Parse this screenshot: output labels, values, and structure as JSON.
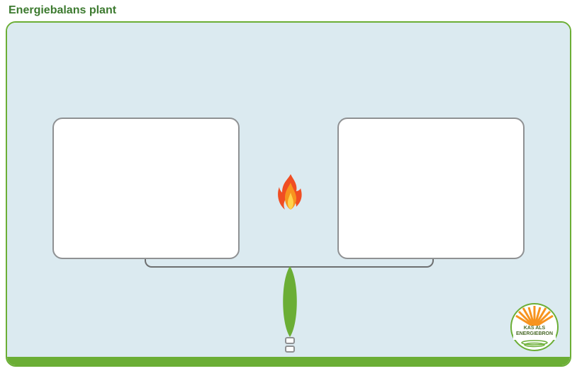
{
  "title": {
    "text": "Energiebalans plant",
    "color": "#3c7a2f",
    "fontsize": 16
  },
  "frame": {
    "border_color": "#6bae35",
    "radius": 14,
    "sky_color": "#dbeaf0",
    "ground_color": "#6bae35",
    "ground_height": 12
  },
  "panels": {
    "left": {
      "bg": "#ffffff",
      "border": "#8f9193",
      "radius": 14
    },
    "right": {
      "bg": "#ffffff",
      "border": "#8f9193",
      "radius": 14
    }
  },
  "balance": {
    "beam_border": "#6d6f70",
    "leaf_fill": "#6bae35",
    "stem_border": "#8f9193"
  },
  "flame": {
    "outer": "#f04e23",
    "mid": "#f7931e",
    "inner": "#ffd24a"
  },
  "logo": {
    "ray_color": "#f7931e",
    "ring_color": "#6bae35",
    "text_color": "#4a6a2a",
    "line1": "KAS ALS",
    "line2": "ENERGIEBRON"
  }
}
